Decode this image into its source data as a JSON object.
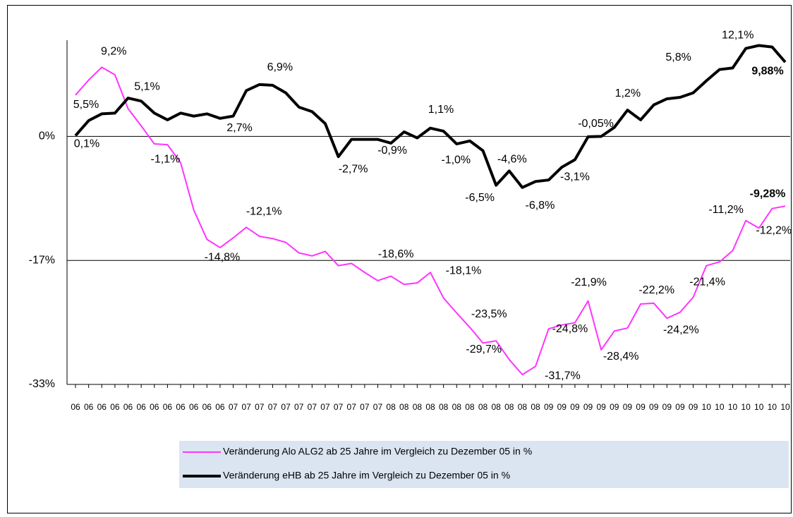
{
  "chart_data": {
    "type": "line",
    "categories": [
      "06",
      "06",
      "06",
      "06",
      "06",
      "06",
      "06",
      "06",
      "06",
      "06",
      "06",
      "06",
      "07",
      "07",
      "07",
      "07",
      "07",
      "07",
      "07",
      "07",
      "07",
      "07",
      "07",
      "07",
      "08",
      "08",
      "08",
      "08",
      "08",
      "08",
      "08",
      "08",
      "08",
      "08",
      "08",
      "08",
      "09",
      "09",
      "09",
      "09",
      "09",
      "09",
      "09",
      "09",
      "09",
      "09",
      "09",
      "09",
      "10",
      "10",
      "10",
      "10",
      "10",
      "10",
      "10"
    ],
    "ylim": [
      -33,
      12.8
    ],
    "yticks": [
      {
        "value": -33,
        "label": "-33%"
      },
      {
        "value": -16.5,
        "label": "-17%"
      },
      {
        "value": 0,
        "label": "0%"
      }
    ],
    "grid": true,
    "series": [
      {
        "name": "Veränderung Alo ALG2 ab 25 Jahre im Vergleich zu Dezember 05 in %",
        "color": "#ff33ff",
        "values": [
          5.5,
          7.5,
          9.2,
          8.2,
          3.7,
          1.4,
          -1.0,
          -1.1,
          -3.5,
          -9.8,
          -13.7,
          -14.8,
          -13.5,
          -12.1,
          -13.3,
          -13.6,
          -14.1,
          -15.5,
          -15.9,
          -15.3,
          -17.2,
          -16.9,
          -18.1,
          -19.2,
          -18.6,
          -19.7,
          -19.5,
          -18.1,
          -21.5,
          -23.5,
          -25.4,
          -27.5,
          -27.2,
          -29.7,
          -31.7,
          -30.6,
          -25.6,
          -25.1,
          -24.8,
          -21.9,
          -28.4,
          -25.9,
          -25.5,
          -22.3,
          -22.2,
          -24.2,
          -23.4,
          -21.4,
          -17.2,
          -16.7,
          -15.2,
          -11.2,
          -12.2,
          -9.6,
          -9.28
        ],
        "value_labels": [
          "5,5%",
          null,
          "9,2%",
          null,
          null,
          null,
          null,
          "-1,1%",
          null,
          null,
          null,
          "-14,8%",
          null,
          "-12,1%",
          null,
          null,
          null,
          null,
          null,
          null,
          null,
          null,
          null,
          null,
          "-18,6%",
          null,
          null,
          "-18,1%",
          null,
          "-23,5%",
          null,
          null,
          null,
          "-29,7%",
          "-31,7%",
          null,
          null,
          null,
          "-24,8%",
          "-21,9%",
          "-28,4%",
          null,
          null,
          null,
          "-22,2%",
          "-24,2%",
          null,
          "-21,4%",
          null,
          null,
          null,
          "-11,2%",
          "-12,2%",
          null,
          "-9,28%"
        ]
      },
      {
        "name": "Veränderung eHB ab 25 Jahre im Vergleich zu Dezember 05 in %",
        "color": "#000000",
        "values": [
          0.1,
          2.1,
          3.0,
          3.1,
          5.1,
          4.7,
          3.1,
          2.2,
          3.1,
          2.7,
          3.0,
          2.4,
          2.7,
          6.1,
          6.9,
          6.8,
          5.8,
          3.9,
          3.3,
          1.7,
          -2.7,
          -0.4,
          -0.4,
          -0.4,
          -0.9,
          0.6,
          -0.2,
          1.1,
          0.7,
          -1.0,
          -0.6,
          -1.9,
          -6.5,
          -4.6,
          -6.8,
          -6.0,
          -5.8,
          -4.1,
          -3.1,
          -0.05,
          0.0,
          1.2,
          3.5,
          2.2,
          4.2,
          5.0,
          5.2,
          5.8,
          7.4,
          8.9,
          9.1,
          11.7,
          12.1,
          11.9,
          9.88
        ],
        "value_labels": [
          "0,1%",
          null,
          null,
          null,
          "5,1%",
          null,
          null,
          null,
          null,
          null,
          null,
          null,
          "2,7%",
          null,
          "6,9%",
          null,
          null,
          null,
          null,
          null,
          "-2,7%",
          null,
          null,
          null,
          "-0,9%",
          null,
          null,
          "1,1%",
          null,
          "-1,0%",
          null,
          null,
          "-6,5%",
          "-4,6%",
          "-6,8%",
          null,
          null,
          null,
          "-3,1%",
          "-0,05%",
          null,
          "1,2%",
          null,
          null,
          null,
          null,
          null,
          "5,8%",
          null,
          null,
          null,
          null,
          "12,1%",
          null,
          "9,88%"
        ]
      }
    ]
  }
}
